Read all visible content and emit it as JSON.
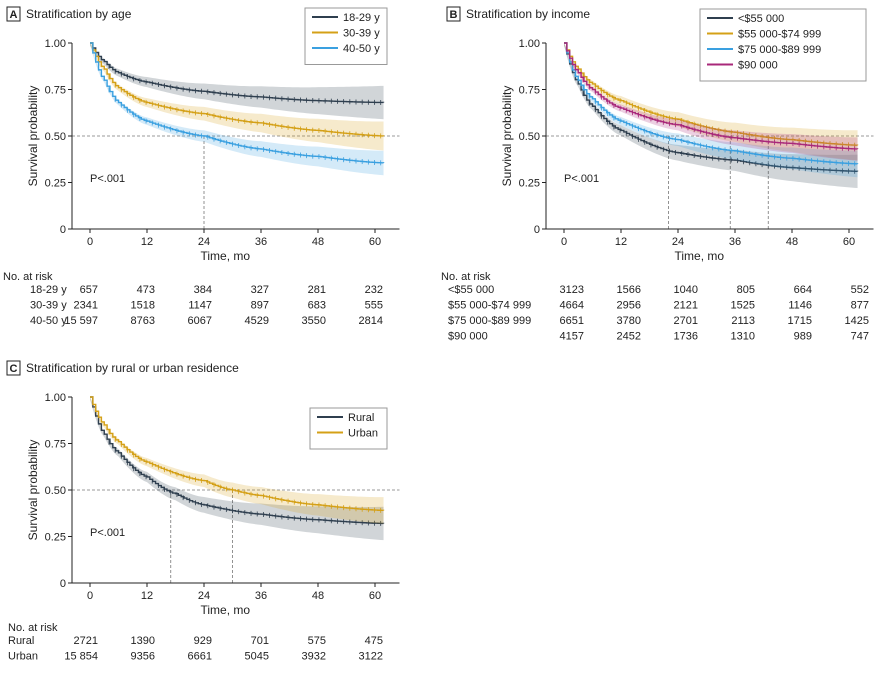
{
  "chart_data": [
    {
      "type": "line",
      "panel_letter": "A",
      "title": "Stratification by age",
      "xlabel": "Time, mo",
      "ylabel": "Survival probability",
      "xlim": [
        0,
        62
      ],
      "ylim": [
        0,
        1
      ],
      "xticks": [
        0,
        12,
        24,
        36,
        48,
        60
      ],
      "yticks": [
        "0",
        "0.25",
        "0.50",
        "0.75",
        "1.00"
      ],
      "annotation": "P<.001",
      "legend_position": "top-right",
      "reference_line_y": 0.5,
      "median_lines_x": [
        24
      ],
      "series": [
        {
          "name": "18-29 y",
          "color": "#2f3f4f",
          "x": [
            0,
            3,
            6,
            12,
            24,
            36,
            48,
            62
          ],
          "y": [
            1,
            0.9,
            0.84,
            0.79,
            0.74,
            0.71,
            0.69,
            0.68
          ]
        },
        {
          "name": "30-39 y",
          "color": "#d4a017",
          "x": [
            0,
            3,
            6,
            12,
            24,
            36,
            48,
            62
          ],
          "y": [
            1,
            0.86,
            0.76,
            0.68,
            0.62,
            0.57,
            0.53,
            0.5
          ]
        },
        {
          "name": "40-50 y",
          "color": "#3aa0e0",
          "x": [
            0,
            3,
            6,
            12,
            24,
            36,
            48,
            62
          ],
          "y": [
            1,
            0.8,
            0.68,
            0.58,
            0.5,
            0.43,
            0.39,
            0.355
          ]
        }
      ],
      "risk_table": {
        "label": "No. at risk",
        "rows": [
          {
            "name": "18-29 y",
            "values": [
              "657",
              "473",
              "384",
              "327",
              "281",
              "232"
            ]
          },
          {
            "name": "30-39 y",
            "values": [
              "2341",
              "1518",
              "1147",
              "897",
              "683",
              "555"
            ]
          },
          {
            "name": "40-50 y",
            "values": [
              "15 597",
              "8763",
              "6067",
              "4529",
              "3550",
              "2814"
            ]
          }
        ]
      }
    },
    {
      "type": "line",
      "panel_letter": "B",
      "title": "Stratification by income",
      "xlabel": "Time, mo",
      "ylabel": "Survival probability",
      "xlim": [
        0,
        62
      ],
      "ylim": [
        0,
        1
      ],
      "xticks": [
        0,
        12,
        24,
        36,
        48,
        60
      ],
      "yticks": [
        "0",
        "0.25",
        "0.50",
        "0.75",
        "1.00"
      ],
      "annotation": "P<.001",
      "legend_position": "top-right",
      "reference_line_y": 0.5,
      "median_lines_x": [
        22,
        35,
        43
      ],
      "series": [
        {
          "name": "<$55 000",
          "color": "#2f3f4f",
          "x": [
            0,
            3,
            6,
            12,
            24,
            36,
            48,
            62
          ],
          "y": [
            1,
            0.78,
            0.66,
            0.53,
            0.41,
            0.37,
            0.33,
            0.31
          ]
        },
        {
          "name": "$55 000-$74 999",
          "color": "#d4a017",
          "x": [
            0,
            3,
            6,
            12,
            24,
            36,
            48,
            62
          ],
          "y": [
            1,
            0.86,
            0.78,
            0.69,
            0.59,
            0.52,
            0.48,
            0.45
          ]
        },
        {
          "name": "$75 000-$89 999",
          "color": "#3aa0e0",
          "x": [
            0,
            3,
            6,
            12,
            24,
            36,
            48,
            62
          ],
          "y": [
            1,
            0.8,
            0.7,
            0.58,
            0.48,
            0.42,
            0.38,
            0.35
          ]
        },
        {
          "name": "$90 000",
          "color": "#a8287a",
          "x": [
            0,
            3,
            6,
            12,
            24,
            36,
            48,
            62
          ],
          "y": [
            1,
            0.84,
            0.75,
            0.65,
            0.56,
            0.49,
            0.46,
            0.43
          ]
        }
      ],
      "risk_table": {
        "label": "No. at risk",
        "rows": [
          {
            "name": "<$55 000",
            "values": [
              "3123",
              "1566",
              "1040",
              "805",
              "664",
              "552"
            ]
          },
          {
            "name": "$55 000-$74 999",
            "values": [
              "4664",
              "2956",
              "2121",
              "1525",
              "1146",
              "877"
            ]
          },
          {
            "name": "$75 000-$89 999",
            "values": [
              "6651",
              "3780",
              "2701",
              "2113",
              "1715",
              "1425"
            ]
          },
          {
            "name": "$90 000",
            "values": [
              "4157",
              "2452",
              "1736",
              "1310",
              "989",
              "747"
            ]
          }
        ]
      }
    },
    {
      "type": "line",
      "panel_letter": "C",
      "title": "Stratification by rural or urban residence",
      "xlabel": "Time, mo",
      "ylabel": "Survival probability",
      "xlim": [
        0,
        62
      ],
      "ylim": [
        0,
        1
      ],
      "xticks": [
        0,
        12,
        24,
        36,
        48,
        60
      ],
      "yticks": [
        "0",
        "0.25",
        "0.50",
        "0.75",
        "1.00"
      ],
      "annotation": "P<.001",
      "legend_position": "top-right",
      "reference_line_y": 0.5,
      "median_lines_x": [
        17,
        30
      ],
      "series": [
        {
          "name": "Rural",
          "color": "#2f3f4f",
          "x": [
            0,
            3,
            6,
            12,
            18,
            24,
            36,
            48,
            62
          ],
          "y": [
            1,
            0.8,
            0.7,
            0.57,
            0.48,
            0.42,
            0.37,
            0.34,
            0.32
          ]
        },
        {
          "name": "Urban",
          "color": "#d4a017",
          "x": [
            0,
            3,
            6,
            12,
            24,
            30,
            36,
            48,
            62
          ],
          "y": [
            1,
            0.85,
            0.76,
            0.65,
            0.55,
            0.5,
            0.47,
            0.42,
            0.39
          ]
        }
      ],
      "risk_table": {
        "label": "No. at risk",
        "rows": [
          {
            "name": "Rural",
            "values": [
              "2721",
              "1390",
              "929",
              "701",
              "575",
              "475"
            ]
          },
          {
            "name": "Urban",
            "values": [
              "15 854",
              "9356",
              "6661",
              "5045",
              "3932",
              "3122"
            ]
          }
        ]
      }
    }
  ]
}
